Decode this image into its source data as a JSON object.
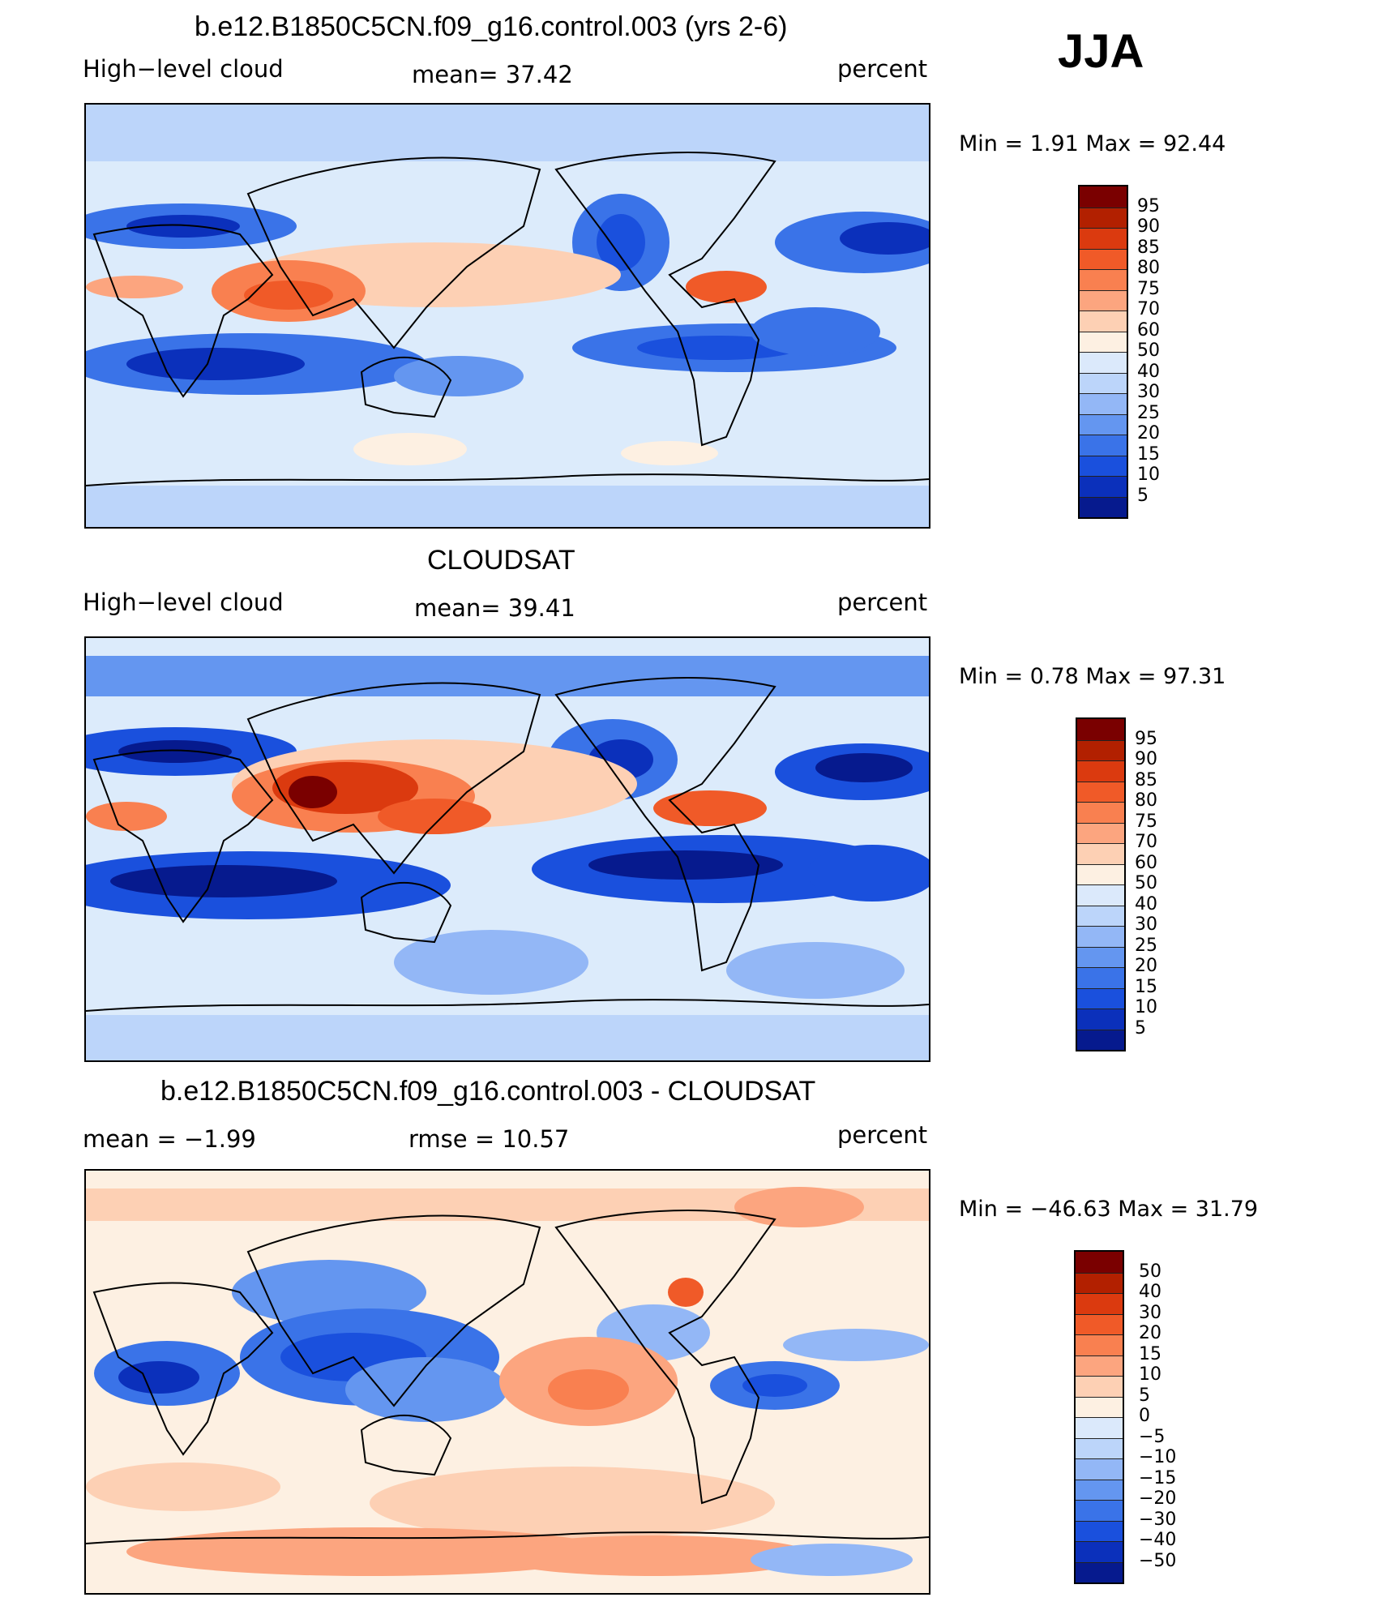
{
  "season": "JJA",
  "panels": [
    {
      "title": "b.e12.B1850C5CN.f09_g16.control.003 (yrs 2-6)",
      "left_label": "High−level cloud",
      "center_label": "mean=   37.42",
      "right_label": "percent",
      "minmax": "Min  =    1.91  Max  =   92.44",
      "colorbar_labels": [
        "95",
        "90",
        "85",
        "80",
        "75",
        "70",
        "60",
        "50",
        "40",
        "30",
        "25",
        "20",
        "15",
        "10",
        "5"
      ]
    },
    {
      "title": "CLOUDSAT",
      "left_label": "High−level cloud",
      "center_label": "mean=   39.41",
      "right_label": "percent",
      "minmax": "Min  =    0.78  Max  =   97.31",
      "colorbar_labels": [
        "95",
        "90",
        "85",
        "80",
        "75",
        "70",
        "60",
        "50",
        "40",
        "30",
        "25",
        "20",
        "15",
        "10",
        "5"
      ]
    },
    {
      "title": "b.e12.B1850C5CN.f09_g16.control.003 - CLOUDSAT",
      "left_label": "mean  =   −1.99",
      "center_label": "rmse  =   10.57",
      "right_label": "percent",
      "minmax": "Min  = −46.63  Max  =   31.79",
      "colorbar_labels": [
        "50",
        "40",
        "30",
        "20",
        "15",
        "10",
        "5",
        "0",
        "−5",
        "−10",
        "−15",
        "−20",
        "−30",
        "−40",
        "−50"
      ]
    }
  ],
  "colors": {
    "palette": [
      "#7a0000",
      "#b22000",
      "#db3a0f",
      "#f05a28",
      "#f98050",
      "#fca57f",
      "#fdd0b4",
      "#fdf0e2",
      "#dbe9fb",
      "#bcd5fa",
      "#93b7f6",
      "#6496f0",
      "#3a73e8",
      "#1a50dd",
      "#0b30bb",
      "#061a8e"
    ]
  }
}
